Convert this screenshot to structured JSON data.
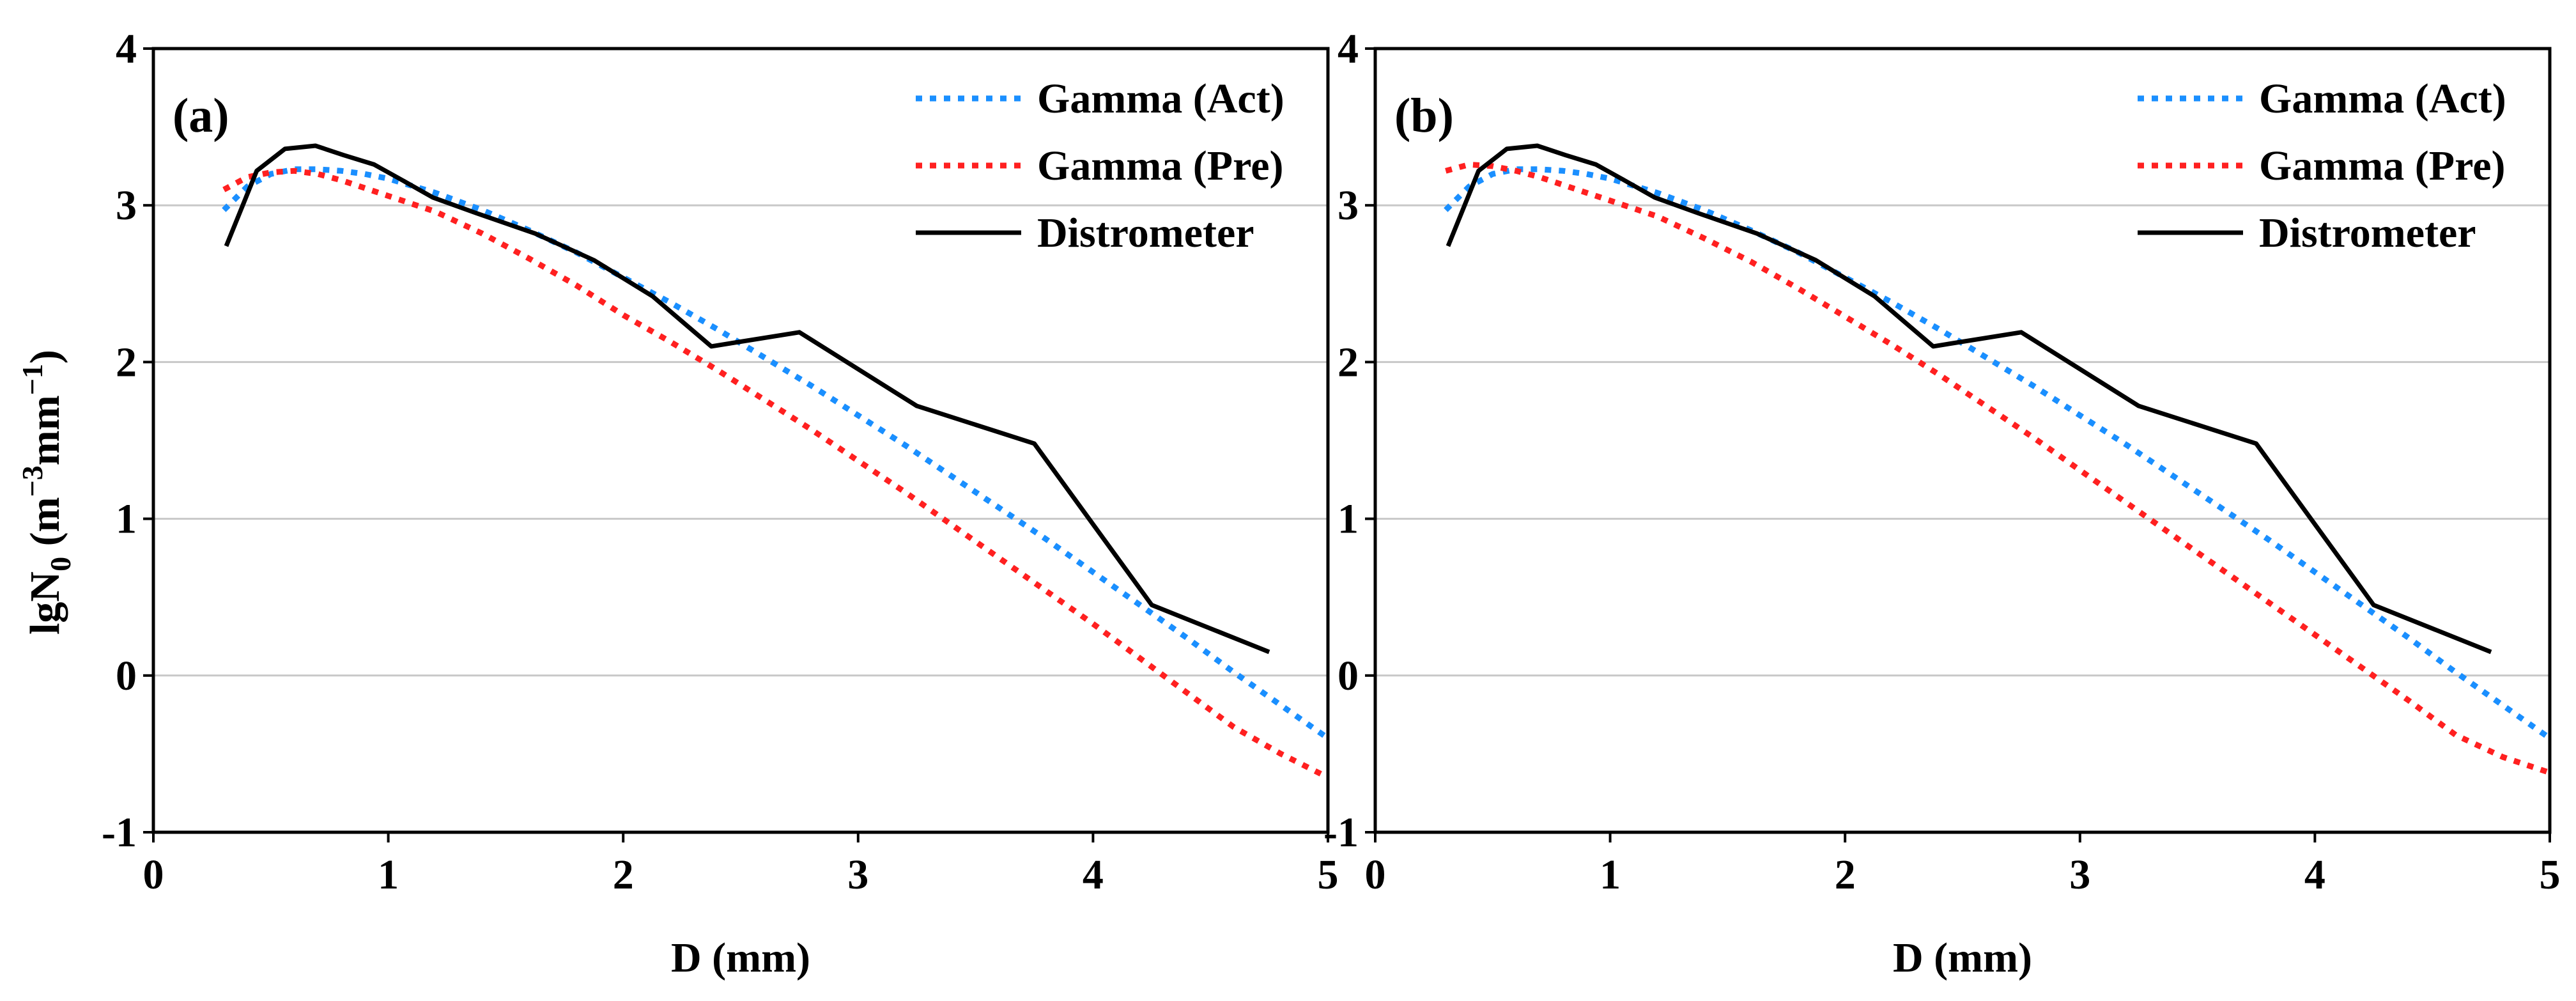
{
  "figure": {
    "ylabel_main": "lgN",
    "ylabel_sub": "0",
    "ylabel_unit_open": " (m",
    "ylabel_exp1": "−3",
    "ylabel_mid": "mm",
    "ylabel_exp2": "−1",
    "ylabel_close": ")"
  },
  "chart_data": [
    {
      "type": "line",
      "panel_label": "(a)",
      "xlabel": "D (mm)",
      "xlim": [
        0,
        5
      ],
      "ylim": [
        -1,
        4
      ],
      "xticks": [
        "0",
        "1",
        "2",
        "3",
        "4",
        "5"
      ],
      "yticks": [
        "-1",
        "0",
        "1",
        "2",
        "3",
        "4"
      ],
      "grid": "horizontal",
      "legend_position": "top-right",
      "series": [
        {
          "name": "Gamma (Act)",
          "color": "#1a8fff",
          "style": "dotted",
          "x": [
            0.3,
            0.4,
            0.5,
            0.6,
            0.7,
            0.8,
            0.9,
            1.0,
            1.2,
            1.4,
            1.6,
            1.8,
            2.0,
            2.2,
            2.4,
            2.6,
            2.8,
            3.0,
            3.2,
            3.4,
            3.6,
            3.8,
            4.0,
            4.2,
            4.4,
            4.6,
            4.8,
            5.0
          ],
          "y": [
            2.97,
            3.12,
            3.2,
            3.23,
            3.23,
            3.22,
            3.2,
            3.17,
            3.08,
            2.97,
            2.84,
            2.7,
            2.54,
            2.38,
            2.21,
            2.03,
            1.85,
            1.66,
            1.47,
            1.27,
            1.07,
            0.87,
            0.66,
            0.45,
            0.24,
            0.02,
            -0.19,
            -0.4
          ]
        },
        {
          "name": "Gamma (Pre)",
          "color": "#ff2020",
          "style": "dotted",
          "x": [
            0.3,
            0.4,
            0.5,
            0.6,
            0.7,
            0.8,
            0.9,
            1.0,
            1.2,
            1.4,
            1.6,
            1.8,
            2.0,
            2.2,
            2.4,
            2.6,
            2.8,
            3.0,
            3.2,
            3.4,
            3.6,
            3.8,
            4.0,
            4.2,
            4.4,
            4.6,
            4.8,
            5.0
          ],
          "y": [
            3.1,
            3.18,
            3.21,
            3.22,
            3.2,
            3.16,
            3.11,
            3.06,
            2.96,
            2.82,
            2.66,
            2.49,
            2.3,
            2.13,
            1.95,
            1.76,
            1.57,
            1.37,
            1.17,
            0.96,
            0.75,
            0.54,
            0.33,
            0.11,
            -0.11,
            -0.33,
            -0.5,
            -0.65
          ]
        },
        {
          "name": "Distrometer",
          "color": "#000000",
          "style": "solid",
          "x": [
            0.31,
            0.44,
            0.56,
            0.69,
            0.81,
            0.94,
            1.06,
            1.19,
            1.375,
            1.625,
            1.875,
            2.125,
            2.375,
            2.75,
            3.25,
            3.75,
            4.25,
            4.75
          ],
          "y": [
            2.74,
            3.22,
            3.36,
            3.38,
            3.32,
            3.26,
            3.16,
            3.05,
            2.95,
            2.82,
            2.65,
            2.42,
            2.1,
            2.19,
            1.72,
            1.48,
            0.45,
            0.15
          ]
        }
      ]
    },
    {
      "type": "line",
      "panel_label": "(b)",
      "xlabel": "D (mm)",
      "xlim": [
        0,
        5
      ],
      "ylim": [
        -1,
        4
      ],
      "xticks": [
        "0",
        "1",
        "2",
        "3",
        "4",
        "5"
      ],
      "yticks": [
        "-1",
        "0",
        "1",
        "2",
        "3",
        "4"
      ],
      "grid": "horizontal",
      "legend_position": "top-right",
      "series": [
        {
          "name": "Gamma (Act)",
          "color": "#1a8fff",
          "style": "dotted",
          "x": [
            0.3,
            0.4,
            0.5,
            0.6,
            0.7,
            0.8,
            0.9,
            1.0,
            1.2,
            1.4,
            1.6,
            1.8,
            2.0,
            2.2,
            2.4,
            2.6,
            2.8,
            3.0,
            3.2,
            3.4,
            3.6,
            3.8,
            4.0,
            4.2,
            4.4,
            4.6,
            4.8,
            5.0
          ],
          "y": [
            2.97,
            3.12,
            3.2,
            3.23,
            3.23,
            3.22,
            3.2,
            3.17,
            3.08,
            2.97,
            2.84,
            2.7,
            2.54,
            2.38,
            2.21,
            2.03,
            1.85,
            1.66,
            1.47,
            1.27,
            1.07,
            0.87,
            0.66,
            0.45,
            0.24,
            0.02,
            -0.19,
            -0.4
          ]
        },
        {
          "name": "Gamma (Pre)",
          "color": "#ff2020",
          "style": "dotted",
          "x": [
            0.3,
            0.4,
            0.5,
            0.6,
            0.7,
            0.8,
            0.9,
            1.0,
            1.2,
            1.4,
            1.6,
            1.8,
            2.0,
            2.2,
            2.4,
            2.6,
            2.8,
            3.0,
            3.2,
            3.4,
            3.6,
            3.8,
            4.0,
            4.2,
            4.4,
            4.6,
            4.8,
            5.0
          ],
          "y": [
            3.22,
            3.26,
            3.25,
            3.22,
            3.18,
            3.13,
            3.08,
            3.03,
            2.93,
            2.79,
            2.64,
            2.47,
            2.29,
            2.11,
            1.92,
            1.72,
            1.52,
            1.31,
            1.1,
            0.89,
            0.68,
            0.47,
            0.26,
            0.05,
            -0.16,
            -0.38,
            -0.52,
            -0.62
          ]
        },
        {
          "name": "Distrometer",
          "color": "#000000",
          "style": "solid",
          "x": [
            0.31,
            0.44,
            0.56,
            0.69,
            0.81,
            0.94,
            1.06,
            1.19,
            1.375,
            1.625,
            1.875,
            2.125,
            2.375,
            2.75,
            3.25,
            3.75,
            4.25,
            4.75
          ],
          "y": [
            2.74,
            3.22,
            3.36,
            3.38,
            3.32,
            3.26,
            3.16,
            3.05,
            2.95,
            2.82,
            2.65,
            2.42,
            2.1,
            2.19,
            1.72,
            1.48,
            0.45,
            0.15
          ]
        }
      ]
    }
  ]
}
